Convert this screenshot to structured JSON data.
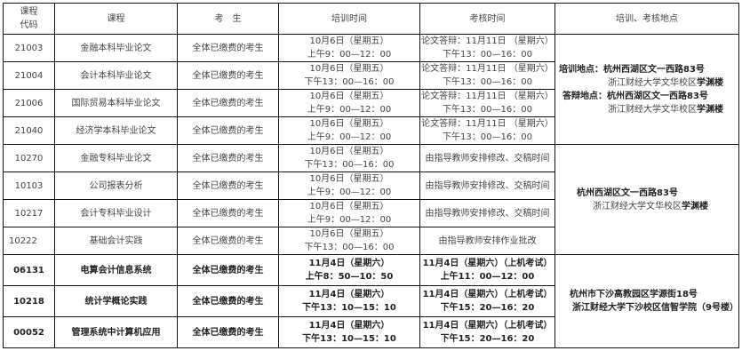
{
  "headers": {
    "code": "课程\n代码",
    "code_line1": "课程",
    "code_line2": "代码",
    "course": "课程",
    "candidates": "考　生",
    "training_time": "培训时间",
    "exam_time": "考核时间",
    "location": "培训、考核地点"
  },
  "rows": [
    {
      "code": "21003",
      "course": "金融本科毕业论文",
      "candidates": "全体已缴费的考生",
      "train1": "10月6日（星期五）",
      "train2": "上午9：00—12：00",
      "exam1": "论文答辩：11月11日 （星期六）",
      "exam2": "下午13：00—16：00"
    },
    {
      "code": "21004",
      "course": "会计本科毕业论文",
      "candidates": "全体已缴费的考生",
      "train1": "10月6日（星期五）",
      "train2": "下午13：00—16：00",
      "exam1": "论文答辩：11月11日 （星期六）",
      "exam2": "下午13：00—16：00"
    },
    {
      "code": "21006",
      "course": "国际贸易本科毕业论文",
      "candidates": "全体已缴费的考生",
      "train1": "10月6日（星期五）",
      "train2": "上午9：00—12：00",
      "exam1": "论文答辩：11月11日 （星期六）",
      "exam2": "下午13：00—16：00"
    },
    {
      "code": "21040",
      "course": "经济学本科毕业论文",
      "candidates": "全体已缴费的考生",
      "train1": "10月6日（星期五）",
      "train2": "上午9：00—12：00",
      "exam1": "论文答辩：11月11日 （星期六）",
      "exam2": "下午13：00—16：00"
    },
    {
      "code": "10270",
      "course": "金融专科毕业论文",
      "candidates": "全体已缴费的考生",
      "train1": "10月6日（星期五）",
      "train2": "下午13：00—16：00",
      "exam1": "由指导教师安排修改、交稿时间",
      "exam2": ""
    },
    {
      "code": "10103",
      "course": "公司报表分析",
      "candidates": "全体已缴费的考生",
      "train1": "10月6日（星期五）",
      "train2": "上午9：00—12：00",
      "exam1": "由指导教师安排修改、交稿时间",
      "exam2": ""
    },
    {
      "code": "10217",
      "course": "会计专科毕业设计",
      "candidates": "全体已缴费的考生",
      "train1": "10月6日（星期五）",
      "train2": "上午9：00—12：00",
      "exam1": "由指导教师安排修改、交稿时间",
      "exam2": ""
    },
    {
      "code": "10222",
      "course": "基础会计实践",
      "candidates": "全体已缴费的考生",
      "train1": "10月6日（星期五）",
      "train2": "下午13：00—16：00",
      "exam1": "由指导教师安排作业批改",
      "exam2": ""
    },
    {
      "code": "06131",
      "course": "电算会计信息系统",
      "candidates": "全体已缴费的考生",
      "train1": "11月4日（星期六）",
      "train2": "上午8：50—10：50",
      "exam1": "11月4日（星期六）（上机考试）",
      "exam2": "上午11：00—12：00"
    },
    {
      "code": "10218",
      "course": "统计学概论实践",
      "candidates": "全体已缴费的考生",
      "train1": "11月4日（星期六）",
      "train2": "下午13：10—15：10",
      "exam1": "11月4日（星期六）（上机考试）",
      "exam2": "下午15：20—16：20"
    },
    {
      "code": "00052",
      "course": "管理系统中计算机应用",
      "candidates": "全体已缴费的考生",
      "train1": "11月4日（星期六）",
      "train2": "下午13：10—15：10",
      "exam1": "11月4日（星期六）（上机考试）",
      "exam2": "下午15：20—16：20"
    }
  ],
  "locations": {
    "group1": {
      "train_label": "培训地点：",
      "train_addr": "杭州西湖区文一西路83号",
      "train_campus": "浙江财经大学文华校区",
      "train_building": "学渊楼",
      "defense_label": "答辩地点：",
      "defense_addr": "杭州西湖区文一西路83号",
      "defense_campus": "浙江财经大学文华校区",
      "defense_building": "学渊楼"
    },
    "group2": {
      "addr": "杭州西湖区文一西路83号",
      "campus": "浙江财经大学文华校区",
      "building": "学渊楼"
    },
    "group3": {
      "addr": "杭州市下沙高教园区学源街18号",
      "campus": "浙江财经大学下沙校区",
      "building": "信智学院（9号楼）"
    }
  }
}
